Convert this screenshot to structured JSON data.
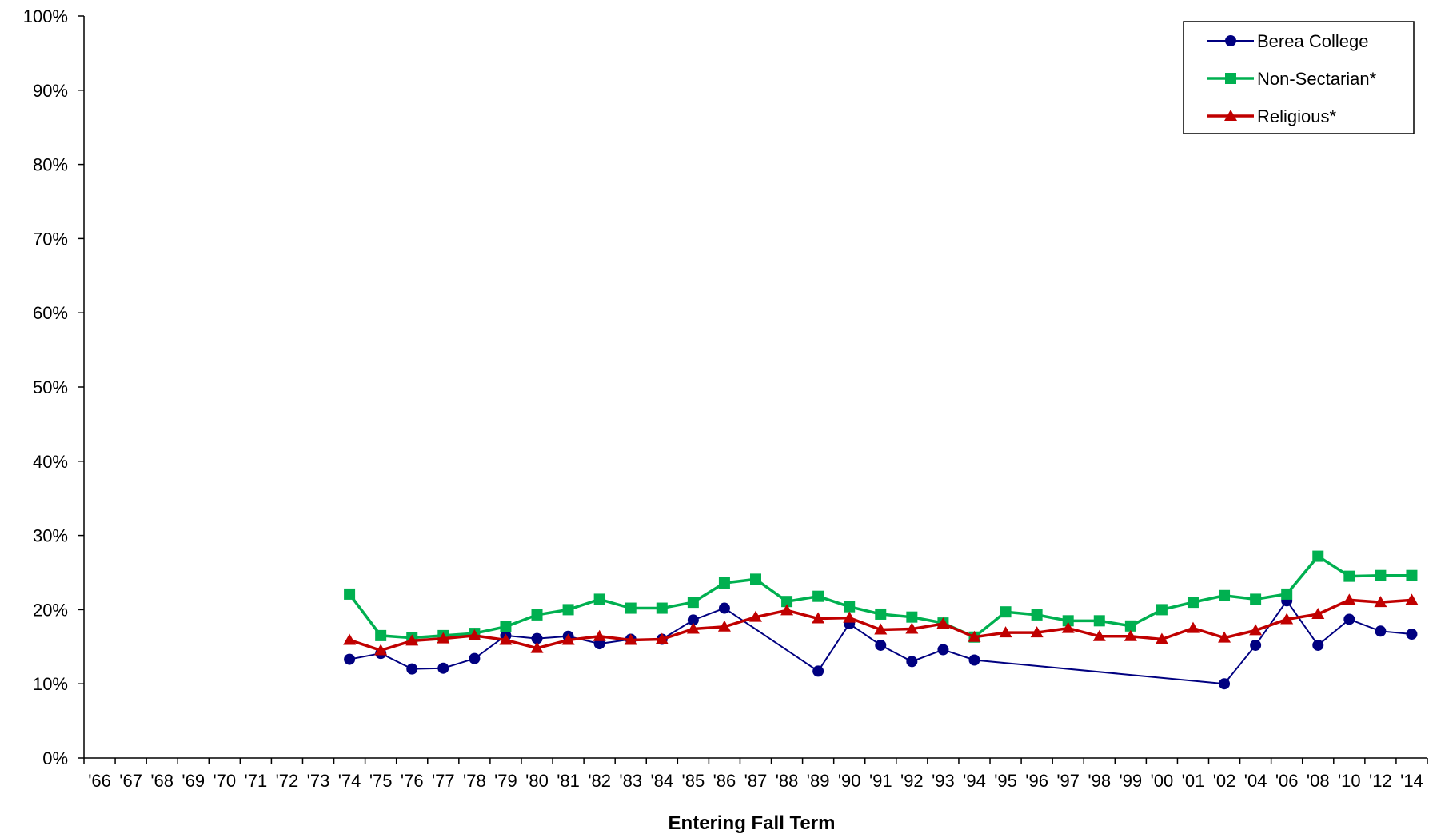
{
  "chart_data": {
    "type": "line",
    "title": "",
    "xlabel": "Entering Fall Term",
    "ylabel": "",
    "ylim": [
      0,
      100
    ],
    "yticks": [
      "0%",
      "10%",
      "20%",
      "30%",
      "40%",
      "50%",
      "60%",
      "70%",
      "80%",
      "90%",
      "100%"
    ],
    "categories": [
      "'66",
      "'67",
      "'68",
      "'69",
      "'70",
      "'71",
      "'72",
      "'73",
      "'74",
      "'75",
      "'76",
      "'77",
      "'78",
      "'79",
      "'80",
      "'81",
      "'82",
      "'83",
      "'84",
      "'85",
      "'86",
      "'87",
      "'88",
      "'89",
      "'90",
      "'91",
      "'92",
      "'93",
      "'94",
      "'95",
      "'96",
      "'97",
      "'98",
      "'99",
      "'00",
      "'01",
      "'02",
      "'04",
      "'06",
      "'08",
      "'10",
      "'12",
      "'14"
    ],
    "grid": false,
    "legend_position": "top-right",
    "series": [
      {
        "name": "Berea College",
        "color": "#000080",
        "marker": "circle",
        "values": [
          null,
          null,
          null,
          null,
          null,
          null,
          null,
          null,
          13.3,
          14.1,
          12.0,
          12.1,
          13.4,
          16.5,
          16.1,
          16.4,
          15.4,
          16.0,
          16.0,
          18.6,
          20.2,
          null,
          null,
          11.7,
          18.1,
          15.2,
          13.0,
          14.6,
          13.2,
          null,
          null,
          null,
          null,
          null,
          null,
          null,
          10.0,
          15.2,
          21.2,
          15.2,
          18.7,
          17.1,
          16.7
        ]
      },
      {
        "name": "Non-Sectarian*",
        "color": "#00B050",
        "marker": "square",
        "values": [
          null,
          null,
          null,
          null,
          null,
          null,
          null,
          null,
          22.1,
          16.5,
          16.2,
          16.5,
          16.8,
          17.7,
          19.3,
          20.0,
          21.4,
          20.2,
          20.2,
          21.0,
          23.6,
          24.1,
          21.1,
          21.8,
          20.4,
          19.4,
          19.0,
          18.2,
          16.3,
          19.7,
          19.3,
          18.5,
          18.5,
          17.8,
          20.0,
          21.0,
          21.9,
          21.4,
          22.1,
          27.2,
          24.5,
          24.6,
          24.6
        ]
      },
      {
        "name": "Religious*",
        "color": "#C00000",
        "marker": "triangle",
        "values": [
          null,
          null,
          null,
          null,
          null,
          null,
          null,
          null,
          15.9,
          14.5,
          15.8,
          16.1,
          16.5,
          15.9,
          14.8,
          15.9,
          16.4,
          15.9,
          16.0,
          17.4,
          17.7,
          19.0,
          19.9,
          18.8,
          18.9,
          17.3,
          17.4,
          18.1,
          16.3,
          16.9,
          16.9,
          17.5,
          16.4,
          16.4,
          16.0,
          17.5,
          16.2,
          17.2,
          18.7,
          19.4,
          21.3,
          21.0,
          21.3
        ]
      }
    ]
  }
}
